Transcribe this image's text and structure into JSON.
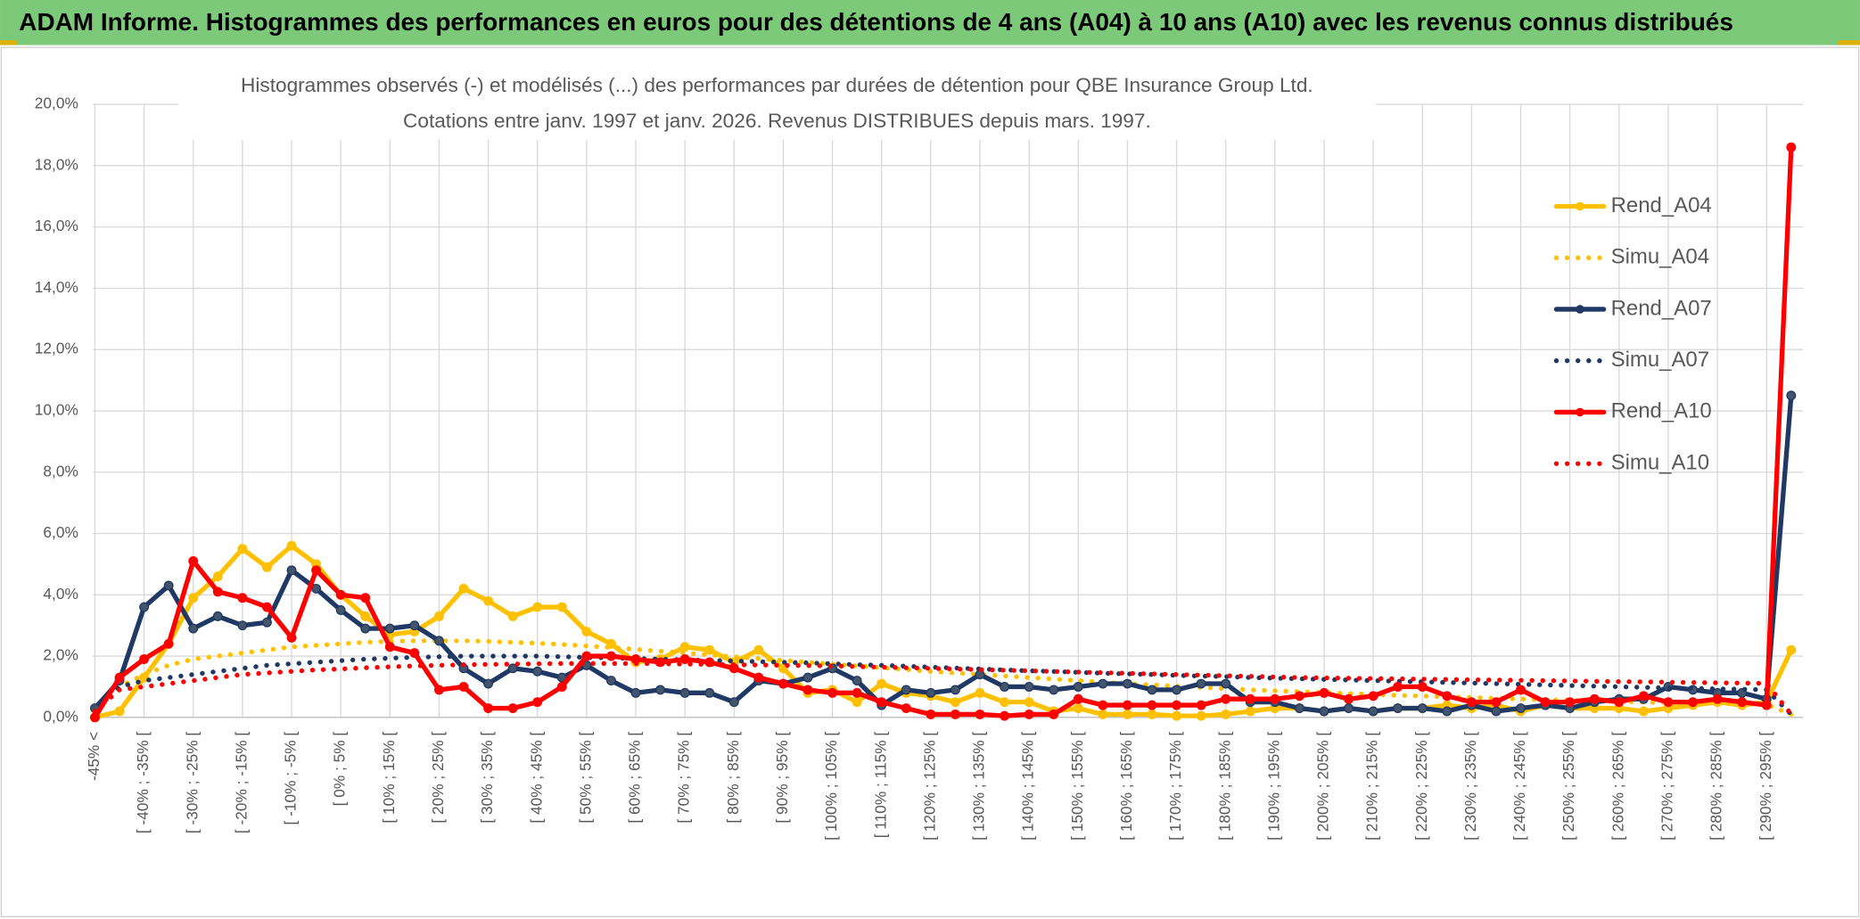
{
  "header": {
    "title": "ADAM Informe. Histogrammes des performances en euros pour des détentions de 4 ans (A04) à 10 ans (A10) avec les revenus connus distribués"
  },
  "chart_data": {
    "type": "line",
    "title": "Histogrammes observés (-) et modélisés (...) des performances par durées de détention pour QBE Insurance Group Ltd.",
    "subtitle": "Cotations entre janv. 1997 et janv. 2026. Revenus DISTRIBUES depuis mars. 1997.",
    "categories": [
      "-45% <",
      null,
      "[ -40% ; -35% [",
      null,
      "[ -30% ; -25% [",
      null,
      "[ -20% ; -15% [",
      null,
      "[ -10% ; -5% [",
      null,
      "[ 0% ; 5% [",
      null,
      "[ 10% ; 15% [",
      null,
      "[ 20% ; 25% [",
      null,
      "[ 30% ; 35% [",
      null,
      "[ 40% ; 45% [",
      null,
      "[ 50% ; 55% [",
      null,
      "[ 60% ; 65% [",
      null,
      "[ 70% ; 75% [",
      null,
      "[ 80% ; 85% [",
      null,
      "[ 90% ; 95% [",
      null,
      "[ 100% ; 105% [",
      null,
      "[ 110% ; 115% [",
      null,
      "[ 120% ; 125% [",
      null,
      "[ 130% ; 135% [",
      null,
      "[ 140% ; 145% [",
      null,
      "[ 150% ; 155% [",
      null,
      "[ 160% ; 165% [",
      null,
      "[ 170% ; 175% [",
      null,
      "[ 180% ; 185% [",
      null,
      "[ 190% ; 195% [",
      null,
      "[ 200% ; 205% [",
      null,
      "[ 210% ; 215% [",
      null,
      "[ 220% ; 225% [",
      null,
      "[ 230% ; 235% [",
      null,
      "[ 240% ; 245% [",
      null,
      "[ 250% ; 255% [",
      null,
      "[ 260% ; 265% [",
      null,
      "[ 270% ; 275% [",
      null,
      "[ 280% ; 285% [",
      null,
      "[ 290% ; 295% [",
      null
    ],
    "series": [
      {
        "name": "Rend_A04",
        "color": "#ffc000",
        "line_style": "solid",
        "markers": true,
        "values": [
          0,
          0.2,
          1.3,
          2.4,
          3.9,
          4.6,
          5.5,
          4.9,
          5.6,
          5.0,
          4.0,
          3.3,
          2.7,
          2.8,
          3.3,
          4.2,
          3.8,
          3.3,
          3.6,
          3.6,
          2.8,
          2.4,
          1.8,
          1.9,
          2.3,
          2.2,
          1.8,
          2.2,
          1.6,
          0.8,
          0.9,
          0.5,
          1.1,
          0.8,
          0.7,
          0.5,
          0.8,
          0.5,
          0.5,
          0.2,
          0.3,
          0.1,
          0.1,
          0.1,
          0.05,
          0.05,
          0.1,
          0.2,
          0.3,
          0.3,
          0.2,
          0.3,
          0.2,
          0.3,
          0.3,
          0.4,
          0.3,
          0.4,
          0.2,
          0.4,
          0.3,
          0.3,
          0.3,
          0.2,
          0.3,
          0.4,
          0.5,
          0.4,
          0.5,
          2.2
        ]
      },
      {
        "name": "Simu_A04",
        "color": "#ffc000",
        "line_style": "dotted",
        "markers": false,
        "values": [
          0.2,
          1.0,
          1.4,
          1.7,
          1.9,
          2.0,
          2.1,
          2.2,
          2.3,
          2.35,
          2.4,
          2.45,
          2.48,
          2.5,
          2.5,
          2.5,
          2.48,
          2.45,
          2.42,
          2.38,
          2.33,
          2.28,
          2.22,
          2.16,
          2.1,
          2.04,
          1.98,
          1.92,
          1.86,
          1.8,
          1.74,
          1.68,
          1.62,
          1.56,
          1.5,
          1.45,
          1.4,
          1.35,
          1.3,
          1.25,
          1.2,
          1.15,
          1.1,
          1.06,
          1.02,
          0.98,
          0.94,
          0.9,
          0.87,
          0.84,
          0.81,
          0.78,
          0.75,
          0.72,
          0.7,
          0.67,
          0.65,
          0.62,
          0.6,
          0.58,
          0.56,
          0.54,
          0.52,
          0.5,
          0.48,
          0.46,
          0.45,
          0.43,
          0.42,
          0.1
        ]
      },
      {
        "name": "Rend_A07",
        "color": "#1f3864",
        "line_style": "solid",
        "markers": true,
        "values": [
          0.3,
          1.2,
          3.6,
          4.3,
          2.9,
          3.3,
          3.0,
          3.1,
          4.8,
          4.2,
          3.5,
          2.9,
          2.9,
          3.0,
          2.5,
          1.6,
          1.1,
          1.6,
          1.5,
          1.3,
          1.7,
          1.2,
          0.8,
          0.9,
          0.8,
          0.8,
          0.5,
          1.2,
          1.1,
          1.3,
          1.6,
          1.2,
          0.4,
          0.9,
          0.8,
          0.9,
          1.4,
          1.0,
          1.0,
          0.9,
          1.0,
          1.1,
          1.1,
          0.9,
          0.9,
          1.1,
          1.1,
          0.5,
          0.5,
          0.3,
          0.2,
          0.3,
          0.2,
          0.3,
          0.3,
          0.2,
          0.4,
          0.2,
          0.3,
          0.4,
          0.3,
          0.5,
          0.6,
          0.6,
          1.0,
          0.9,
          0.8,
          0.8,
          0.6,
          10.5
        ]
      },
      {
        "name": "Simu_A07",
        "color": "#1f3864",
        "line_style": "dotted",
        "markers": false,
        "values": [
          0.2,
          1.0,
          1.2,
          1.3,
          1.4,
          1.5,
          1.6,
          1.7,
          1.75,
          1.8,
          1.85,
          1.9,
          1.93,
          1.96,
          1.98,
          2.0,
          2.0,
          2.0,
          2.0,
          1.98,
          1.96,
          1.94,
          1.92,
          1.9,
          1.88,
          1.86,
          1.84,
          1.82,
          1.8,
          1.78,
          1.75,
          1.72,
          1.7,
          1.67,
          1.64,
          1.61,
          1.58,
          1.55,
          1.52,
          1.5,
          1.47,
          1.44,
          1.42,
          1.4,
          1.37,
          1.35,
          1.33,
          1.3,
          1.28,
          1.26,
          1.24,
          1.22,
          1.2,
          1.18,
          1.16,
          1.14,
          1.12,
          1.1,
          1.08,
          1.06,
          1.04,
          1.02,
          1.0,
          0.98,
          0.96,
          0.95,
          0.93,
          0.92,
          0.9,
          0.1
        ]
      },
      {
        "name": "Rend_A10",
        "color": "#ff0000",
        "line_style": "solid",
        "markers": true,
        "values": [
          0.0,
          1.3,
          1.9,
          2.4,
          5.1,
          4.1,
          3.9,
          3.6,
          2.6,
          4.8,
          4.0,
          3.9,
          2.3,
          2.1,
          0.9,
          1.0,
          0.3,
          0.3,
          0.5,
          1.0,
          2.0,
          2.0,
          1.9,
          1.8,
          1.9,
          1.8,
          1.6,
          1.3,
          1.1,
          0.9,
          0.8,
          0.8,
          0.5,
          0.3,
          0.1,
          0.1,
          0.1,
          0.05,
          0.1,
          0.1,
          0.6,
          0.4,
          0.4,
          0.4,
          0.4,
          0.4,
          0.6,
          0.6,
          0.6,
          0.7,
          0.8,
          0.6,
          0.7,
          1.0,
          1.0,
          0.7,
          0.5,
          0.5,
          0.9,
          0.5,
          0.5,
          0.6,
          0.5,
          0.7,
          0.5,
          0.5,
          0.6,
          0.5,
          0.4,
          18.6
        ]
      },
      {
        "name": "Simu_A10",
        "color": "#ff0000",
        "line_style": "dotted",
        "markers": false,
        "values": [
          0.2,
          0.9,
          1.0,
          1.1,
          1.2,
          1.3,
          1.4,
          1.45,
          1.5,
          1.55,
          1.58,
          1.62,
          1.65,
          1.68,
          1.7,
          1.72,
          1.73,
          1.74,
          1.75,
          1.76,
          1.76,
          1.76,
          1.76,
          1.75,
          1.74,
          1.73,
          1.72,
          1.71,
          1.7,
          1.69,
          1.68,
          1.66,
          1.64,
          1.62,
          1.6,
          1.58,
          1.56,
          1.54,
          1.52,
          1.5,
          1.48,
          1.46,
          1.44,
          1.42,
          1.4,
          1.38,
          1.36,
          1.34,
          1.32,
          1.3,
          1.29,
          1.28,
          1.27,
          1.26,
          1.25,
          1.24,
          1.23,
          1.22,
          1.21,
          1.2,
          1.19,
          1.18,
          1.17,
          1.16,
          1.15,
          1.14,
          1.13,
          1.12,
          1.11,
          0.1
        ]
      }
    ],
    "ylim": [
      0,
      20
    ],
    "yticks": [
      {
        "value": 0,
        "label": "0,0%"
      },
      {
        "value": 2,
        "label": "2,0%"
      },
      {
        "value": 4,
        "label": "4,0%"
      },
      {
        "value": 6,
        "label": "6,0%"
      },
      {
        "value": 8,
        "label": "8,0%"
      },
      {
        "value": 10,
        "label": "10,0%"
      },
      {
        "value": 12,
        "label": "12,0%"
      },
      {
        "value": 14,
        "label": "14,0%"
      },
      {
        "value": 16,
        "label": "16,0%"
      },
      {
        "value": 18,
        "label": "18,0%"
      },
      {
        "value": 20,
        "label": "20,0%"
      }
    ],
    "grid": true,
    "legend": "right"
  }
}
